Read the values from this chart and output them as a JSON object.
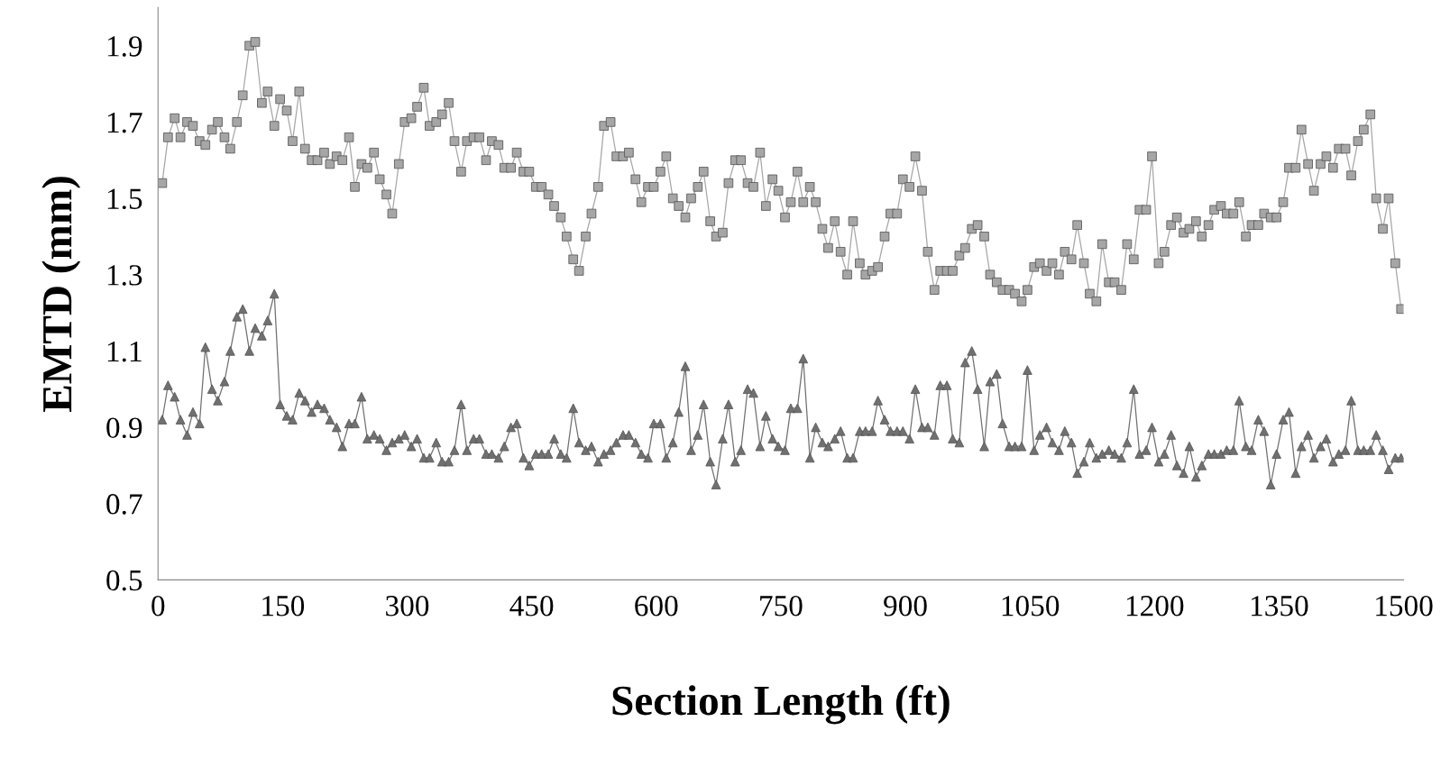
{
  "chart_data": {
    "type": "line",
    "xlabel": "Section Length (ft)",
    "ylabel": "EMTD (mm)",
    "x": [
      5,
      12,
      20,
      27,
      35,
      42,
      50,
      57,
      65,
      72,
      80,
      87,
      95,
      102,
      110,
      117,
      125,
      132,
      140,
      147,
      155,
      162,
      170,
      177,
      185,
      192,
      200,
      207,
      215,
      222,
      230,
      237,
      245,
      252,
      260,
      267,
      275,
      282,
      290,
      297,
      305,
      312,
      320,
      327,
      335,
      342,
      350,
      357,
      365,
      372,
      380,
      387,
      395,
      402,
      410,
      417,
      425,
      432,
      440,
      447,
      455,
      462,
      470,
      477,
      485,
      492,
      500,
      507,
      515,
      522,
      530,
      537,
      545,
      552,
      560,
      567,
      575,
      582,
      590,
      597,
      605,
      612,
      620,
      627,
      635,
      642,
      650,
      657,
      665,
      672,
      680,
      687,
      695,
      702,
      710,
      717,
      725,
      732,
      740,
      747,
      755,
      762,
      770,
      777,
      785,
      792,
      800,
      807,
      815,
      822,
      830,
      837,
      845,
      852,
      860,
      867,
      875,
      882,
      890,
      897,
      905,
      912,
      920,
      927,
      935,
      942,
      950,
      957,
      965,
      972,
      980,
      987,
      995,
      1002,
      1010,
      1017,
      1025,
      1032,
      1040,
      1047,
      1055,
      1062,
      1070,
      1077,
      1085,
      1092,
      1100,
      1107,
      1115,
      1122,
      1130,
      1137,
      1145,
      1152,
      1160,
      1167,
      1175,
      1182,
      1190,
      1197,
      1205,
      1212,
      1220,
      1227,
      1235,
      1242,
      1250,
      1257,
      1265,
      1272,
      1280,
      1287,
      1295,
      1302,
      1310,
      1317,
      1325,
      1332,
      1340,
      1347,
      1355,
      1362,
      1370,
      1377,
      1385,
      1392,
      1400,
      1407,
      1415,
      1422,
      1430,
      1437,
      1445,
      1452,
      1460,
      1467,
      1475,
      1482,
      1490,
      1497
    ],
    "series": [
      {
        "color": "#a6a6a6",
        "marker": "square",
        "values": [
          1.54,
          1.66,
          1.71,
          1.66,
          1.7,
          1.69,
          1.65,
          1.64,
          1.68,
          1.7,
          1.66,
          1.63,
          1.7,
          1.77,
          1.9,
          1.91,
          1.75,
          1.78,
          1.69,
          1.76,
          1.73,
          1.65,
          1.78,
          1.63,
          1.6,
          1.6,
          1.62,
          1.59,
          1.61,
          1.6,
          1.66,
          1.53,
          1.59,
          1.58,
          1.62,
          1.55,
          1.51,
          1.46,
          1.59,
          1.7,
          1.71,
          1.74,
          1.79,
          1.69,
          1.7,
          1.72,
          1.75,
          1.65,
          1.57,
          1.65,
          1.66,
          1.66,
          1.6,
          1.65,
          1.64,
          1.58,
          1.58,
          1.62,
          1.57,
          1.57,
          1.53,
          1.53,
          1.51,
          1.48,
          1.45,
          1.4,
          1.34,
          1.31,
          1.4,
          1.46,
          1.53,
          1.69,
          1.7,
          1.61,
          1.61,
          1.62,
          1.55,
          1.49,
          1.53,
          1.53,
          1.57,
          1.61,
          1.5,
          1.48,
          1.45,
          1.5,
          1.53,
          1.57,
          1.44,
          1.4,
          1.41,
          1.54,
          1.6,
          1.6,
          1.54,
          1.53,
          1.62,
          1.48,
          1.55,
          1.52,
          1.45,
          1.49,
          1.57,
          1.49,
          1.53,
          1.49,
          1.42,
          1.37,
          1.44,
          1.36,
          1.3,
          1.44,
          1.33,
          1.3,
          1.31,
          1.32,
          1.4,
          1.46,
          1.46,
          1.55,
          1.53,
          1.61,
          1.52,
          1.36,
          1.26,
          1.31,
          1.31,
          1.31,
          1.35,
          1.37,
          1.42,
          1.43,
          1.4,
          1.3,
          1.28,
          1.26,
          1.26,
          1.25,
          1.23,
          1.26,
          1.32,
          1.33,
          1.31,
          1.33,
          1.3,
          1.36,
          1.34,
          1.43,
          1.33,
          1.25,
          1.23,
          1.38,
          1.28,
          1.28,
          1.26,
          1.38,
          1.34,
          1.47,
          1.47,
          1.61,
          1.33,
          1.36,
          1.43,
          1.45,
          1.41,
          1.42,
          1.44,
          1.4,
          1.43,
          1.47,
          1.48,
          1.46,
          1.46,
          1.49,
          1.4,
          1.43,
          1.43,
          1.46,
          1.45,
          1.45,
          1.49,
          1.58,
          1.58,
          1.68,
          1.59,
          1.52,
          1.59,
          1.61,
          1.58,
          1.63,
          1.63,
          1.56,
          1.65,
          1.68,
          1.72,
          1.5,
          1.42,
          1.5,
          1.33,
          1.21
        ]
      },
      {
        "color": "#707070",
        "marker": "triangle",
        "values": [
          0.92,
          1.01,
          0.98,
          0.92,
          0.88,
          0.94,
          0.91,
          1.11,
          1.0,
          0.97,
          1.02,
          1.1,
          1.19,
          1.21,
          1.1,
          1.16,
          1.14,
          1.18,
          1.25,
          0.96,
          0.93,
          0.92,
          0.99,
          0.97,
          0.94,
          0.96,
          0.95,
          0.92,
          0.9,
          0.85,
          0.91,
          0.91,
          0.98,
          0.87,
          0.88,
          0.87,
          0.84,
          0.86,
          0.87,
          0.88,
          0.85,
          0.87,
          0.82,
          0.82,
          0.86,
          0.81,
          0.81,
          0.84,
          0.96,
          0.84,
          0.87,
          0.87,
          0.83,
          0.83,
          0.82,
          0.85,
          0.9,
          0.91,
          0.82,
          0.8,
          0.83,
          0.83,
          0.83,
          0.87,
          0.83,
          0.82,
          0.95,
          0.86,
          0.84,
          0.85,
          0.81,
          0.83,
          0.84,
          0.86,
          0.88,
          0.88,
          0.86,
          0.83,
          0.82,
          0.91,
          0.91,
          0.82,
          0.86,
          0.94,
          1.06,
          0.84,
          0.88,
          0.96,
          0.81,
          0.75,
          0.87,
          0.96,
          0.81,
          0.84,
          1.0,
          0.99,
          0.85,
          0.93,
          0.87,
          0.85,
          0.84,
          0.95,
          0.95,
          1.08,
          0.82,
          0.9,
          0.86,
          0.85,
          0.87,
          0.89,
          0.82,
          0.82,
          0.89,
          0.89,
          0.89,
          0.97,
          0.92,
          0.89,
          0.89,
          0.89,
          0.87,
          1.0,
          0.9,
          0.9,
          0.88,
          1.01,
          1.01,
          0.87,
          0.86,
          1.07,
          1.1,
          1.0,
          0.85,
          1.02,
          1.04,
          0.91,
          0.85,
          0.85,
          0.85,
          1.05,
          0.84,
          0.88,
          0.9,
          0.86,
          0.84,
          0.89,
          0.86,
          0.78,
          0.81,
          0.86,
          0.82,
          0.83,
          0.84,
          0.83,
          0.82,
          0.86,
          1.0,
          0.83,
          0.84,
          0.9,
          0.81,
          0.83,
          0.88,
          0.8,
          0.78,
          0.85,
          0.77,
          0.8,
          0.83,
          0.83,
          0.83,
          0.84,
          0.84,
          0.97,
          0.85,
          0.84,
          0.92,
          0.89,
          0.75,
          0.83,
          0.92,
          0.94,
          0.78,
          0.85,
          0.88,
          0.82,
          0.85,
          0.87,
          0.81,
          0.83,
          0.84,
          0.97,
          0.84,
          0.84,
          0.84,
          0.88,
          0.84,
          0.79,
          0.82,
          0.82
        ]
      }
    ],
    "xlim": [
      0,
      1500
    ],
    "xticks": [
      0,
      150,
      300,
      450,
      600,
      750,
      900,
      1050,
      1200,
      1350,
      1500
    ],
    "ylim": [
      0.5,
      2.0
    ],
    "yticks": [
      0.5,
      0.7,
      0.9,
      1.1,
      1.3,
      1.5,
      1.7,
      1.9
    ],
    "grid": false,
    "legend": false
  }
}
